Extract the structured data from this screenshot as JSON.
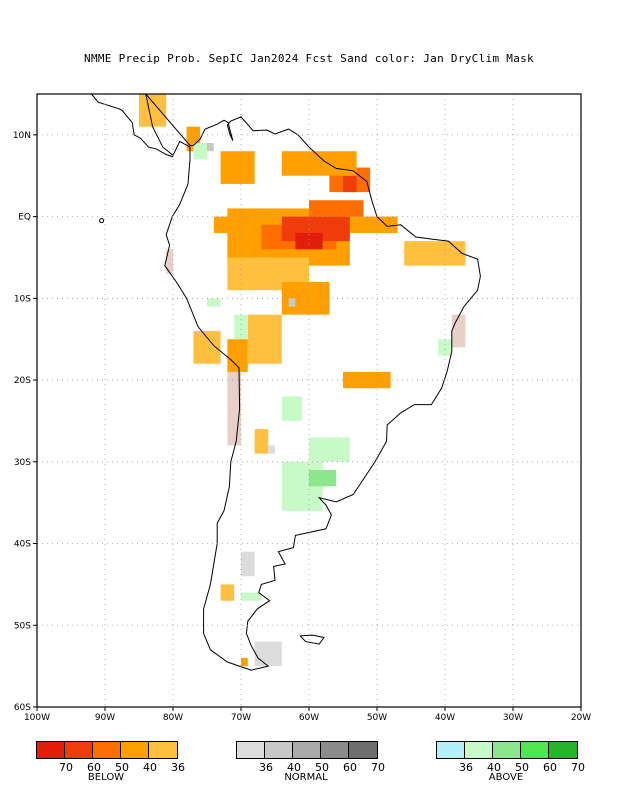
{
  "title": "NMME Precip Prob. SepIC  Jan2024 Fcst  Sand color: Jan DryClim Mask",
  "axes": {
    "lon_labels": [
      "100W",
      "90W",
      "80W",
      "70W",
      "60W",
      "50W",
      "40W",
      "30W",
      "20W"
    ],
    "lat_labels": [
      "10N",
      "EQ",
      "10S",
      "20S",
      "30S",
      "40S",
      "50S",
      "60S"
    ]
  },
  "legend": {
    "below": {
      "name": "BELOW",
      "labels": [
        "70",
        "60",
        "50",
        "40",
        "36"
      ],
      "colors": [
        "#e01e0a",
        "#f03c0a",
        "#ff6e00",
        "#ffa000",
        "#ffc040"
      ]
    },
    "normal": {
      "name": "NORMAL",
      "labels": [
        "36",
        "40",
        "50",
        "60",
        "70"
      ],
      "colors": [
        "#dcdcdc",
        "#c8c8c8",
        "#aaaaaa",
        "#8c8c8c",
        "#6e6e6e"
      ]
    },
    "above": {
      "name": "ABOVE",
      "labels": [
        "36",
        "40",
        "50",
        "60",
        "70"
      ],
      "colors": [
        "#b4f0fa",
        "#c8fac8",
        "#8ce68c",
        "#50e650",
        "#28b428"
      ]
    }
  },
  "colors": {
    "mask": "#e8d0c8",
    "land_outline": "#000000",
    "grid": "#999999"
  }
}
